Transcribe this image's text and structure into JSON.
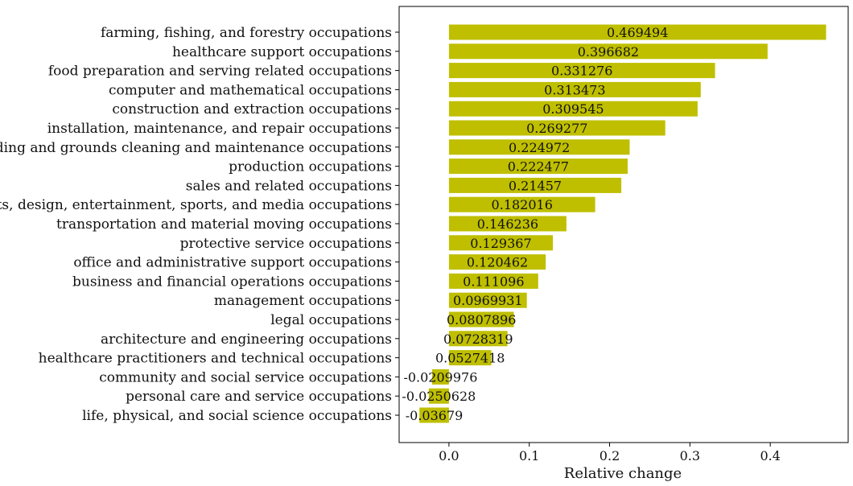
{
  "chart_data": {
    "type": "bar",
    "orientation": "horizontal",
    "categories": [
      "farming, fishing, and forestry occupations",
      "healthcare support occupations",
      "food preparation and serving related occupations",
      "computer and mathematical occupations",
      "construction and extraction occupations",
      "installation, maintenance, and repair occupations",
      "building and grounds cleaning and maintenance occupations",
      "production occupations",
      "sales and related occupations",
      "arts, design, entertainment, sports, and media occupations",
      "transportation and material moving occupations",
      "protective service occupations",
      "office and administrative support occupations",
      "business and financial operations occupations",
      "management occupations",
      "legal occupations",
      "architecture and engineering occupations",
      "healthcare practitioners and technical occupations",
      "community and social service occupations",
      "personal care and service occupations",
      "life, physical, and social science occupations"
    ],
    "values": [
      0.469494,
      0.396682,
      0.331276,
      0.313473,
      0.309545,
      0.269277,
      0.224972,
      0.222477,
      0.21457,
      0.182016,
      0.146236,
      0.129367,
      0.120462,
      0.111096,
      0.0969931,
      0.0807896,
      0.0728319,
      0.0527418,
      -0.0209976,
      -0.0250628,
      -0.03679
    ],
    "value_labels": [
      "0.469494",
      "0.396682",
      "0.331276",
      "0.313473",
      "0.309545",
      "0.269277",
      "0.224972",
      "0.222477",
      "0.21457",
      "0.182016",
      "0.146236",
      "0.129367",
      "0.120462",
      "0.111096",
      "0.0969931",
      "0.0807896",
      "0.0728319",
      "0.0527418",
      "-0.0209976",
      "-0.0250628",
      "-0.03679"
    ],
    "xlabel": "Relative change",
    "ylabel": "",
    "title": "",
    "xlim": [
      -0.062,
      0.497
    ],
    "xticks": [
      0.0,
      0.1,
      0.2,
      0.3,
      0.4
    ],
    "xtick_labels": [
      "0.0",
      "0.1",
      "0.2",
      "0.3",
      "0.4"
    ],
    "bar_color": "#bfbf00",
    "grid": false,
    "legend": "none"
  }
}
